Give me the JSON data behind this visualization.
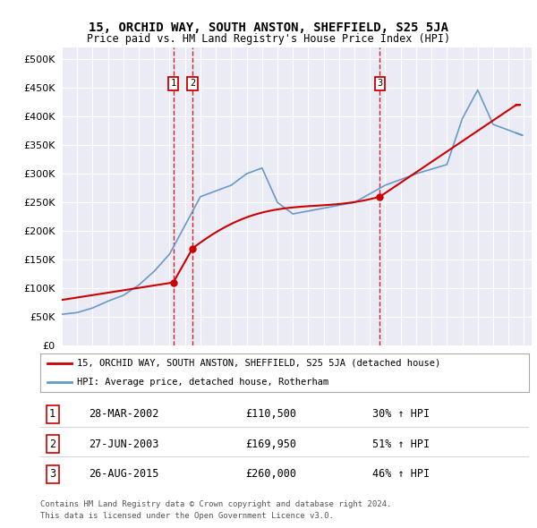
{
  "title": "15, ORCHID WAY, SOUTH ANSTON, SHEFFIELD, S25 5JA",
  "subtitle": "Price paid vs. HM Land Registry's House Price Index (HPI)",
  "xlim_start": 1995.0,
  "xlim_end": 2025.5,
  "ylim": [
    0,
    520000
  ],
  "yticks": [
    0,
    50000,
    100000,
    150000,
    200000,
    250000,
    300000,
    350000,
    400000,
    450000,
    500000
  ],
  "ytick_labels": [
    "£0",
    "£50K",
    "£100K",
    "£150K",
    "£200K",
    "£250K",
    "£300K",
    "£350K",
    "£400K",
    "£450K",
    "£500K"
  ],
  "hpi_color": "#6699cc",
  "price_color": "#cc0000",
  "vline_color": "#cc0000",
  "background_color": "#ffffff",
  "grid_color": "#cccccc",
  "transactions": [
    {
      "label": "1",
      "date_num": 2002.24,
      "price": 110500
    },
    {
      "label": "2",
      "date_num": 2003.49,
      "price": 169950
    },
    {
      "label": "3",
      "date_num": 2015.65,
      "price": 260000
    }
  ],
  "transaction_display": [
    {
      "num": "1",
      "date": "28-MAR-2002",
      "price": "£110,500",
      "pct": "30% ↑ HPI"
    },
    {
      "num": "2",
      "date": "27-JUN-2003",
      "price": "£169,950",
      "pct": "51% ↑ HPI"
    },
    {
      "num": "3",
      "date": "26-AUG-2015",
      "price": "£260,000",
      "pct": "46% ↑ HPI"
    }
  ],
  "legend_line1": "15, ORCHID WAY, SOUTH ANSTON, SHEFFIELD, S25 5JA (detached house)",
  "legend_line2": "HPI: Average price, detached house, Rotherham",
  "footer1": "Contains HM Land Registry data © Crown copyright and database right 2024.",
  "footer2": "This data is licensed under the Open Government Licence v3.0."
}
